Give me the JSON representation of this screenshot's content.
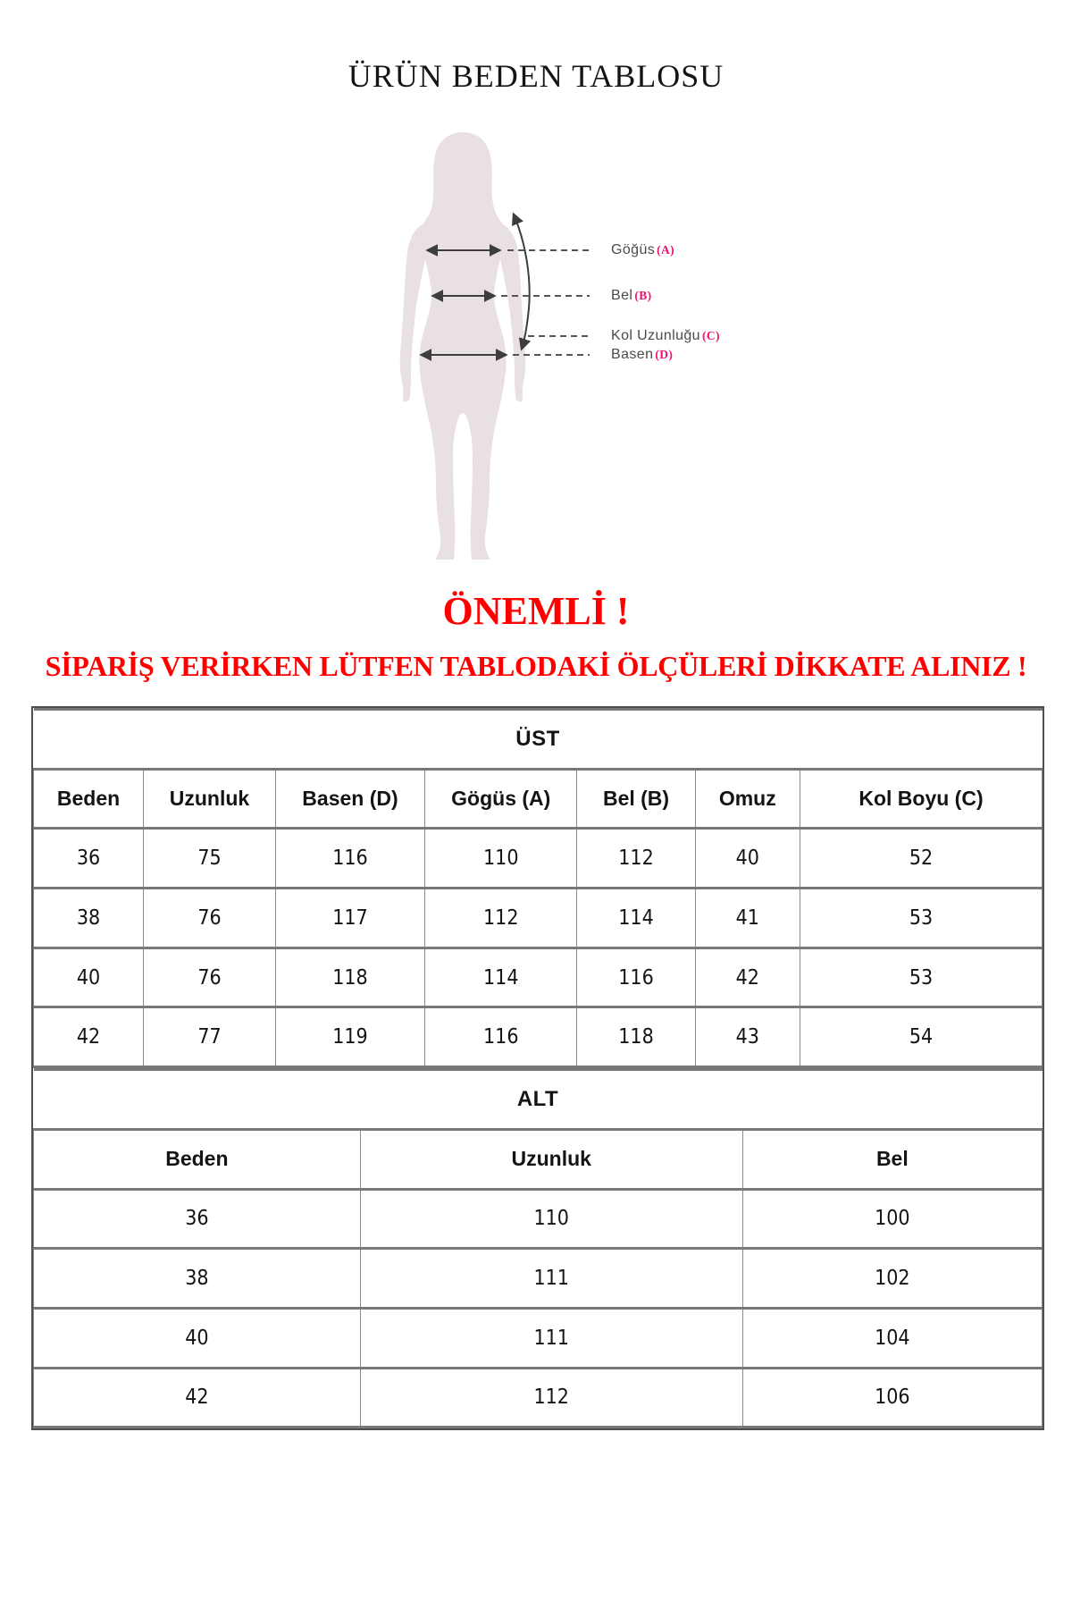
{
  "page": {
    "title": "ÜRÜN BEDEN TABLOSU"
  },
  "diagram": {
    "labels": [
      {
        "name": "Göğüs",
        "code": "(A)"
      },
      {
        "name": "Bel",
        "code": "(B)"
      },
      {
        "name": "Kol Uzunluğu",
        "code": "(C)"
      },
      {
        "name": "Basen",
        "code": "(D)"
      }
    ]
  },
  "notice": {
    "heading": "ÖNEMLİ !",
    "warning": "SİPARİŞ VERİRKEN LÜTFEN TABLODAKİ ÖLÇÜLERİ DİKKATE ALINIZ !"
  },
  "size_tables": {
    "ust": {
      "title": "ÜST",
      "columns": [
        "Beden",
        "Uzunluk",
        "Basen (D)",
        "Gögüs (A)",
        "Bel (B)",
        "Omuz",
        "Kol Boyu (C)"
      ],
      "rows": [
        [
          "36",
          "75",
          "116",
          "110",
          "112",
          "40",
          "52"
        ],
        [
          "38",
          "76",
          "117",
          "112",
          "114",
          "41",
          "53"
        ],
        [
          "40",
          "76",
          "118",
          "114",
          "116",
          "42",
          "53"
        ],
        [
          "42",
          "77",
          "119",
          "116",
          "118",
          "43",
          "54"
        ]
      ]
    },
    "alt": {
      "title": "ALT",
      "columns": [
        "Beden",
        "Uzunluk",
        "Bel"
      ],
      "rows": [
        [
          "36",
          "110",
          "100"
        ],
        [
          "38",
          "111",
          "102"
        ],
        [
          "40",
          "111",
          "104"
        ],
        [
          "42",
          "112",
          "106"
        ]
      ]
    }
  },
  "colors": {
    "accent_red": "#FF0000",
    "accent_pink": "#EE1074",
    "silhouette": "#E9E0E1",
    "label_gray": "#4A4A4A",
    "table_border": "#787878"
  }
}
